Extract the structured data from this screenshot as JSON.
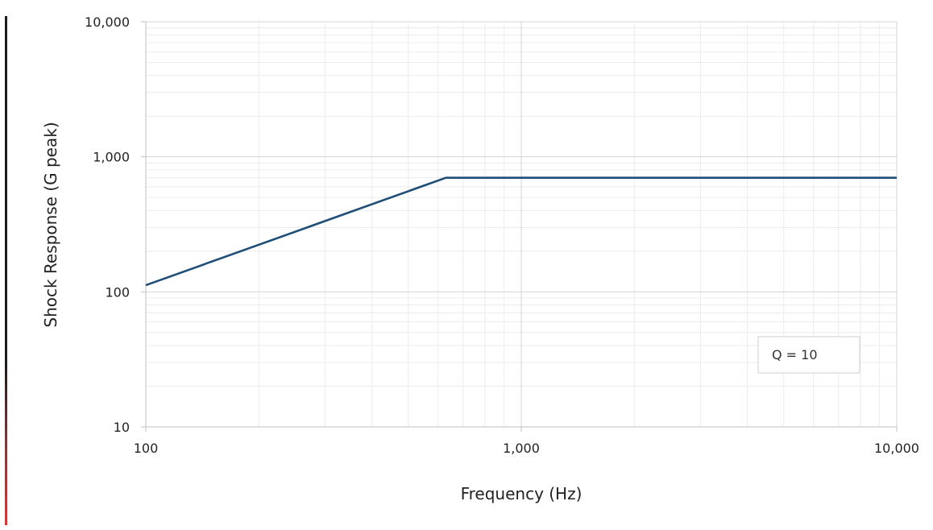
{
  "chart_data": {
    "type": "line",
    "title": "",
    "xlabel": "Frequency (Hz)",
    "ylabel": "Shock Response (G peak)",
    "x_scale": "log",
    "y_scale": "log",
    "xlim": [
      100,
      10000
    ],
    "ylim": [
      10,
      10000
    ],
    "x_ticks": [
      100,
      1000,
      10000
    ],
    "x_tick_labels": [
      "100",
      "1,000",
      "10,000"
    ],
    "y_ticks": [
      10,
      100,
      1000,
      10000
    ],
    "y_tick_labels": [
      "10",
      "100",
      "1,000",
      "10,000"
    ],
    "grid": true,
    "minor_grid": true,
    "series": [
      {
        "x": [
          100,
          630,
          10000
        ],
        "y": [
          112,
          700,
          700
        ],
        "color": "#1f4e79"
      }
    ],
    "annotation": {
      "text": "Q = 10",
      "placement": "bottom-right"
    }
  },
  "colors": {
    "line": "#1f4e79",
    "major_grid": "#d4d4d4",
    "minor_grid": "#ececec",
    "axis": "#bfbfbf",
    "accent_top": "#1b1b1b",
    "accent_bottom": "#d23a3a"
  }
}
